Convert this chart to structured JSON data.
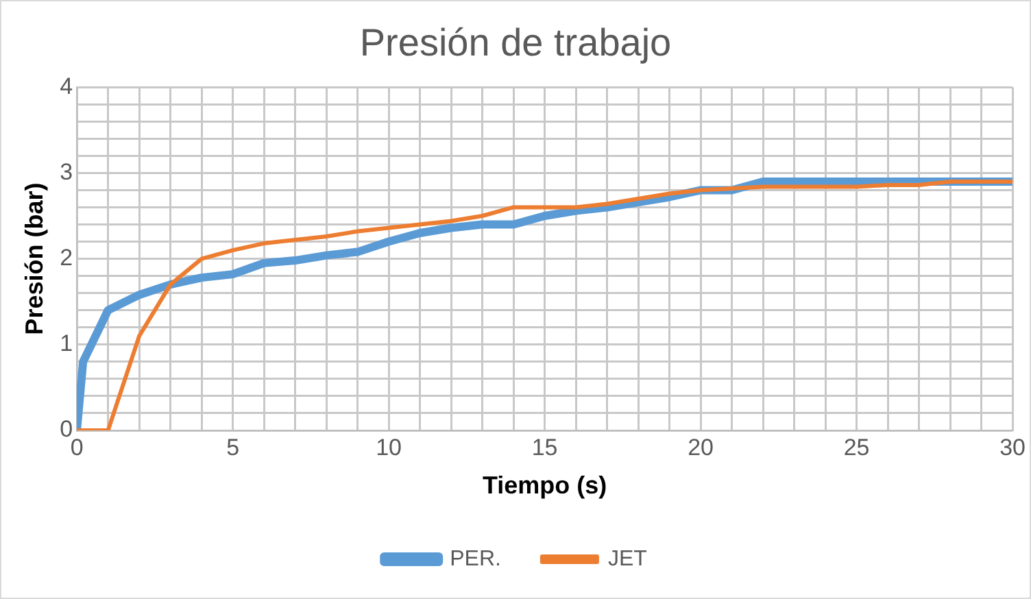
{
  "chart_data": {
    "type": "line",
    "title": "Presión de trabajo",
    "xlabel": "Tiempo (s)",
    "ylabel": "Presión (bar)",
    "xlim": [
      0,
      30
    ],
    "ylim": [
      0,
      4
    ],
    "xticks": [
      0,
      {
        "value": 1,
        "label": null
      },
      {
        "value": 2,
        "label": null
      },
      {
        "value": 3,
        "label": null
      },
      {
        "value": 4,
        "label": null
      },
      5,
      {
        "value": 6,
        "label": null
      },
      {
        "value": 7,
        "label": null
      },
      {
        "value": 8,
        "label": null
      },
      {
        "value": 9,
        "label": null
      },
      10,
      {
        "value": 11,
        "label": null
      },
      {
        "value": 12,
        "label": null
      },
      {
        "value": 13,
        "label": null
      },
      {
        "value": 14,
        "label": null
      },
      15,
      {
        "value": 16,
        "label": null
      },
      {
        "value": 17,
        "label": null
      },
      {
        "value": 18,
        "label": null
      },
      {
        "value": 19,
        "label": null
      },
      20,
      {
        "value": 21,
        "label": null
      },
      {
        "value": 22,
        "label": null
      },
      {
        "value": 23,
        "label": null
      },
      {
        "value": 24,
        "label": null
      },
      25,
      {
        "value": 26,
        "label": null
      },
      {
        "value": 27,
        "label": null
      },
      {
        "value": 28,
        "label": null
      },
      {
        "value": 29,
        "label": null
      },
      30
    ],
    "yticks": [
      0,
      {
        "value": 0.2,
        "label": null
      },
      {
        "value": 0.4,
        "label": null
      },
      {
        "value": 0.6,
        "label": null
      },
      {
        "value": 0.8,
        "label": null
      },
      1,
      {
        "value": 1.2,
        "label": null
      },
      {
        "value": 1.4,
        "label": null
      },
      {
        "value": 1.6,
        "label": null
      },
      {
        "value": 1.8,
        "label": null
      },
      2,
      {
        "value": 2.2,
        "label": null
      },
      {
        "value": 2.4,
        "label": null
      },
      {
        "value": 2.6,
        "label": null
      },
      {
        "value": 2.8,
        "label": null
      },
      3,
      {
        "value": 3.2,
        "label": null
      },
      {
        "value": 3.4,
        "label": null
      },
      {
        "value": 3.6,
        "label": null
      },
      {
        "value": 3.8,
        "label": null
      },
      4
    ],
    "grid": true,
    "legend": "bottom",
    "marker": "none",
    "line_style": "solid",
    "series": [
      {
        "name": "PER.",
        "color": "#5b9bd5",
        "x": [
          0,
          0.2,
          1,
          2,
          3,
          4,
          5,
          6,
          7,
          8,
          9,
          10,
          11,
          12,
          13,
          14,
          15,
          16,
          17,
          18,
          19,
          20,
          21,
          22,
          23,
          24,
          25,
          26,
          27,
          28,
          29,
          30
        ],
        "values": [
          0,
          0.8,
          1.4,
          1.58,
          1.7,
          1.78,
          1.82,
          1.95,
          1.98,
          2.04,
          2.08,
          2.2,
          2.3,
          2.36,
          2.4,
          2.4,
          2.5,
          2.56,
          2.6,
          2.66,
          2.72,
          2.8,
          2.8,
          2.9,
          2.9,
          2.9,
          2.9,
          2.9,
          2.9,
          2.9,
          2.9,
          2.9
        ]
      },
      {
        "name": "JET",
        "color": "#ed7d31",
        "x": [
          0,
          1,
          2,
          3,
          4,
          5,
          6,
          7,
          8,
          9,
          10,
          11,
          12,
          13,
          14,
          15,
          16,
          17,
          18,
          19,
          20,
          21,
          22,
          23,
          24,
          25,
          26,
          27,
          28,
          29,
          30
        ],
        "values": [
          0,
          0,
          1.1,
          1.7,
          2.0,
          2.1,
          2.18,
          2.22,
          2.26,
          2.32,
          2.36,
          2.4,
          2.44,
          2.5,
          2.6,
          2.6,
          2.6,
          2.64,
          2.7,
          2.76,
          2.8,
          2.82,
          2.84,
          2.84,
          2.84,
          2.84,
          2.86,
          2.86,
          2.9,
          2.9,
          2.9
        ]
      }
    ]
  }
}
